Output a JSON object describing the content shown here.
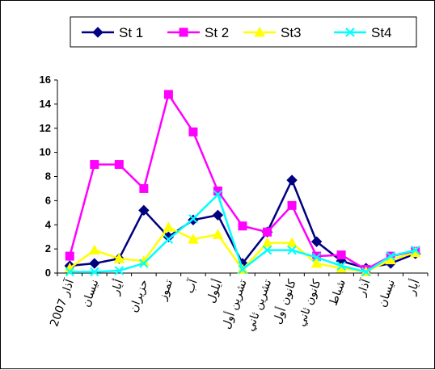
{
  "chart_data": {
    "type": "line",
    "categories": [
      "آذار 2007",
      "نيسان",
      "أيار",
      "حزيران",
      "تموز",
      "آب",
      "أيلول",
      "تشرين أول",
      "تشرين ثاني",
      "كانون أول",
      "كانون ثاني",
      "شباط",
      "آذار",
      "نيسان",
      "أيار"
    ],
    "ylim": [
      0,
      16
    ],
    "yticks": [
      0,
      2,
      4,
      6,
      8,
      10,
      12,
      14,
      16
    ],
    "legend_position": "top",
    "grid": false,
    "series": [
      {
        "name": "St 1",
        "color": "#000080",
        "marker": "diamond",
        "values": [
          0.6,
          0.8,
          1.2,
          5.2,
          3.0,
          4.4,
          4.8,
          0.8,
          3.4,
          7.7,
          2.6,
          1.0,
          0.4,
          0.8,
          1.6
        ]
      },
      {
        "name": "St 2",
        "color": "#FF00FF",
        "marker": "square",
        "values": [
          1.4,
          9.0,
          9.0,
          7.0,
          14.8,
          11.7,
          6.8,
          3.9,
          3.4,
          5.6,
          1.4,
          1.5,
          0.3,
          1.4,
          1.8
        ]
      },
      {
        "name": "St3",
        "color": "#FFFF00",
        "marker": "triangle",
        "values": [
          0.4,
          1.9,
          1.2,
          1.0,
          3.8,
          2.8,
          3.2,
          0.3,
          2.5,
          2.5,
          0.8,
          0.4,
          0.1,
          1.1,
          1.7
        ]
      },
      {
        "name": "St4",
        "color": "#00FFFF",
        "marker": "x",
        "values": [
          0.1,
          0.1,
          0.2,
          0.8,
          2.8,
          4.5,
          6.5,
          0.3,
          1.9,
          1.9,
          1.3,
          0.6,
          0.1,
          1.4,
          1.9
        ]
      }
    ]
  }
}
